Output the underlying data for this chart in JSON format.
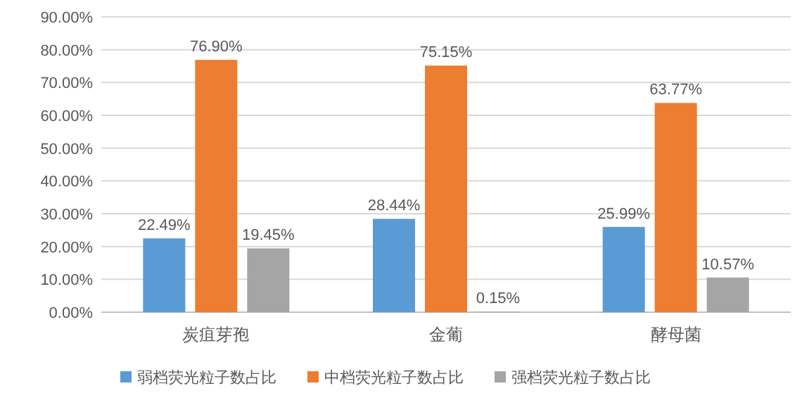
{
  "chart_data": {
    "type": "bar",
    "categories": [
      "炭疽芽孢",
      "金葡",
      "酵母菌"
    ],
    "series": [
      {
        "name": "弱档荧光粒子数占比",
        "color": "#5b9bd5",
        "values": [
          22.49,
          28.44,
          25.99
        ],
        "value_labels": [
          "22.49%",
          "28.44%",
          "25.99%"
        ]
      },
      {
        "name": "中档荧光粒子数占比",
        "color": "#ed7d31",
        "values": [
          76.9,
          75.15,
          63.77
        ],
        "value_labels": [
          "76.90%",
          "75.15%",
          "63.77%"
        ]
      },
      {
        "name": "强档荧光粒子数占比",
        "color": "#a5a5a5",
        "values": [
          19.45,
          0.15,
          10.57
        ],
        "value_labels": [
          "19.45%",
          "0.15%",
          "10.57%"
        ]
      }
    ],
    "ylim": [
      0,
      90
    ],
    "yticks": [
      {
        "value": 0,
        "label": "0.00%"
      },
      {
        "value": 10,
        "label": "10.00%"
      },
      {
        "value": 20,
        "label": "20.00%"
      },
      {
        "value": 30,
        "label": "30.00%"
      },
      {
        "value": 40,
        "label": "40.00%"
      },
      {
        "value": 50,
        "label": "50.00%"
      },
      {
        "value": 60,
        "label": "60.00%"
      },
      {
        "value": 70,
        "label": "70.00%"
      },
      {
        "value": 80,
        "label": "80.00%"
      },
      {
        "value": 90,
        "label": "90.00%"
      }
    ],
    "grid": "y",
    "legend": "bottom"
  }
}
